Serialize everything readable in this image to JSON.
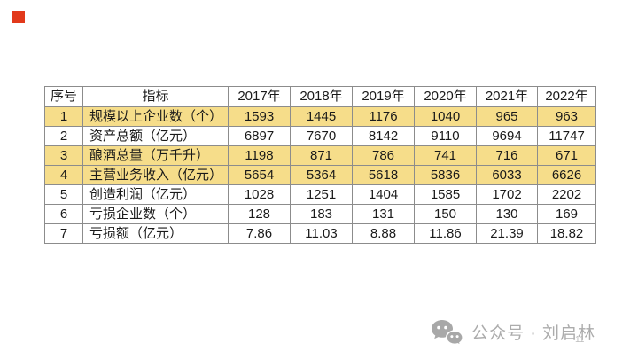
{
  "decor": {
    "red_square_color": "#E2391B"
  },
  "colors": {
    "row_highlight": "#F6DD8A",
    "table_border": "#8C8C8C",
    "watermark_gray": "#ACACAC"
  },
  "table": {
    "headers": [
      "序号",
      "指标",
      "2017年",
      "2018年",
      "2019年",
      "2020年",
      "2021年",
      "2022年"
    ],
    "rows": [
      {
        "highlighted": true,
        "cells": [
          "1",
          "规模以上企业数（个）",
          "1593",
          "1445",
          "1176",
          "1040",
          "965",
          "963"
        ]
      },
      {
        "highlighted": false,
        "cells": [
          "2",
          "资产总额（亿元）",
          "6897",
          "7670",
          "8142",
          "9110",
          "9694",
          "11747"
        ]
      },
      {
        "highlighted": true,
        "cells": [
          "3",
          "酿酒总量（万千升）",
          "1198",
          "871",
          "786",
          "741",
          "716",
          "671"
        ]
      },
      {
        "highlighted": true,
        "cells": [
          "4",
          "主营业务收入（亿元）",
          "5654",
          "5364",
          "5618",
          "5836",
          "6033",
          "6626"
        ]
      },
      {
        "highlighted": false,
        "cells": [
          "5",
          "创造利润（亿元）",
          "1028",
          "1251",
          "1404",
          "1585",
          "1702",
          "2202"
        ]
      },
      {
        "highlighted": false,
        "cells": [
          "6",
          "亏损企业数（个）",
          "128",
          "183",
          "131",
          "150",
          "130",
          "169"
        ]
      },
      {
        "highlighted": false,
        "cells": [
          "7",
          "亏损额（亿元）",
          "7.86",
          "11.03",
          "8.88",
          "11.86",
          "21.39",
          "18.82"
        ]
      }
    ]
  },
  "watermark": {
    "icon": "wechat-icon",
    "text": "公众号 · 刘启林",
    "page_number": "11"
  }
}
